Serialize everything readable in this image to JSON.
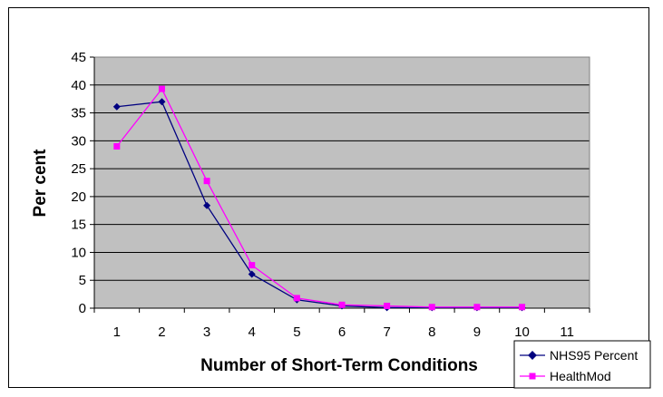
{
  "chart_data": {
    "type": "line",
    "title": "",
    "xlabel": "Number of Short-Term Conditions",
    "ylabel": "Per cent",
    "x": [
      1,
      2,
      3,
      4,
      5,
      6,
      7,
      8,
      9,
      10
    ],
    "x_ticks": [
      "1",
      "2",
      "3",
      "4",
      "5",
      "6",
      "7",
      "8",
      "9",
      "10",
      "11"
    ],
    "xlim": [
      0.5,
      11.5
    ],
    "ylim": [
      0,
      45
    ],
    "y_ticks": [
      0,
      5,
      10,
      15,
      20,
      25,
      30,
      35,
      40,
      45
    ],
    "grid": true,
    "legend_position": "bottom-right",
    "plot_background": "#c0c0c0",
    "series": [
      {
        "name": "NHS95 Percent",
        "color": "#000080",
        "marker": "diamond",
        "values": [
          36.1,
          37.0,
          18.4,
          6.1,
          1.5,
          0.4,
          0.1,
          0.1,
          0.1,
          0.1
        ]
      },
      {
        "name": "HealthMod",
        "color": "#ff00ff",
        "marker": "square",
        "values": [
          29.0,
          39.3,
          22.8,
          7.7,
          1.8,
          0.6,
          0.4,
          0.2,
          0.2,
          0.2
        ]
      }
    ]
  }
}
